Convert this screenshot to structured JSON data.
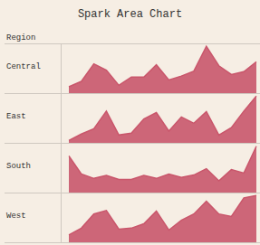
{
  "chart_data": {
    "type": "area",
    "title": "Spark Area Chart",
    "ylabel": "Region",
    "categories": [
      null,
      null,
      null,
      null,
      null,
      null,
      null,
      null,
      null,
      null,
      null,
      null,
      null,
      null,
      null,
      null
    ],
    "series": [
      {
        "name": "Central",
        "color": "#c9566b",
        "values": [
          13,
          24,
          60,
          47,
          16,
          33,
          33,
          58,
          27,
          35,
          45,
          96,
          56,
          38,
          44,
          64
        ]
      },
      {
        "name": "East",
        "color": "#c9566b",
        "values": [
          5,
          18,
          29,
          65,
          16,
          20,
          49,
          62,
          24,
          53,
          40,
          64,
          16,
          31,
          65,
          96
        ]
      },
      {
        "name": "South",
        "color": "#c9566b",
        "values": [
          75,
          38,
          29,
          35,
          27,
          27,
          35,
          29,
          38,
          31,
          36,
          49,
          24,
          47,
          40,
          95
        ]
      },
      {
        "name": "West",
        "color": "#c9566b",
        "values": [
          15,
          29,
          58,
          65,
          27,
          29,
          38,
          64,
          25,
          45,
          58,
          84,
          58,
          53,
          91,
          96
        ]
      }
    ],
    "ylim": [
      0,
      100
    ],
    "grid": false,
    "tick_labels": false
  }
}
